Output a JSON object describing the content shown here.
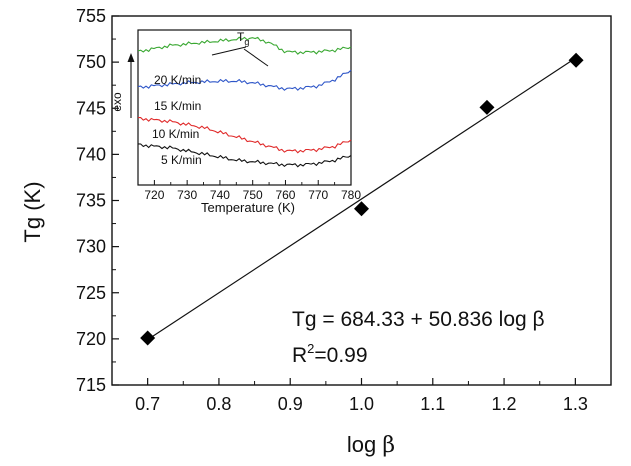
{
  "chart_data": [
    {
      "type": "scatter",
      "xlabel_base": "log",
      "xlabel_symbol": "β",
      "ylabel": "Tg (K)",
      "xlim": [
        0.65,
        1.35
      ],
      "ylim": [
        715,
        755
      ],
      "xticks": [
        "0.7",
        "0.8",
        "0.9",
        "1.0",
        "1.1",
        "1.2",
        "1.3"
      ],
      "yticks": [
        "715",
        "720",
        "725",
        "730",
        "735",
        "740",
        "745",
        "750",
        "755"
      ],
      "points": [
        {
          "x": 0.7,
          "y": 720.1
        },
        {
          "x": 1.0,
          "y": 734.1
        },
        {
          "x": 1.176,
          "y": 745.1
        },
        {
          "x": 1.301,
          "y": 750.2
        }
      ],
      "fit": {
        "intercept": 684.33,
        "slope": 50.836,
        "x_range": [
          0.7,
          1.301
        ]
      },
      "equation_text": "Tg = 684.33 + 50.836 log β",
      "r2_base": "R",
      "r2_sup": "2",
      "r2_value": "=0.99"
    },
    {
      "type": "line",
      "xlabel": "Temperature (K)",
      "xlim": [
        715,
        780
      ],
      "xticks": [
        "720",
        "730",
        "740",
        "750",
        "760",
        "770",
        "780"
      ],
      "y_arrow_label": "exo",
      "tg_marker_base": "T",
      "tg_marker_sub": "g",
      "series": [
        {
          "name": "20 K/min",
          "color": "#3aa832",
          "x": [
            715,
            720,
            725,
            730,
            735,
            740,
            745,
            750,
            755,
            760,
            765,
            770,
            775,
            780
          ],
          "y": [
            0.86,
            0.88,
            0.9,
            0.91,
            0.92,
            0.93,
            0.94,
            0.95,
            0.92,
            0.86,
            0.855,
            0.86,
            0.87,
            0.89
          ]
        },
        {
          "name": "15 K/min",
          "color": "#2e56c8",
          "x": [
            715,
            720,
            725,
            730,
            735,
            740,
            745,
            750,
            755,
            760,
            765,
            770,
            775,
            780
          ],
          "y": [
            0.63,
            0.64,
            0.65,
            0.66,
            0.665,
            0.67,
            0.67,
            0.66,
            0.64,
            0.62,
            0.625,
            0.64,
            0.68,
            0.74
          ]
        },
        {
          "name": "10 K/min",
          "color": "#e02a2a",
          "x": [
            715,
            720,
            725,
            730,
            735,
            740,
            745,
            750,
            755,
            760,
            765,
            770,
            775,
            780
          ],
          "y": [
            0.43,
            0.42,
            0.41,
            0.39,
            0.37,
            0.34,
            0.31,
            0.28,
            0.25,
            0.22,
            0.22,
            0.23,
            0.25,
            0.29
          ]
        },
        {
          "name": "5 K/min",
          "color": "#111111",
          "x": [
            715,
            720,
            725,
            730,
            735,
            740,
            745,
            750,
            755,
            760,
            765,
            770,
            775,
            780
          ],
          "y": [
            0.26,
            0.25,
            0.24,
            0.22,
            0.2,
            0.18,
            0.16,
            0.15,
            0.14,
            0.13,
            0.13,
            0.14,
            0.16,
            0.19
          ]
        }
      ]
    }
  ]
}
